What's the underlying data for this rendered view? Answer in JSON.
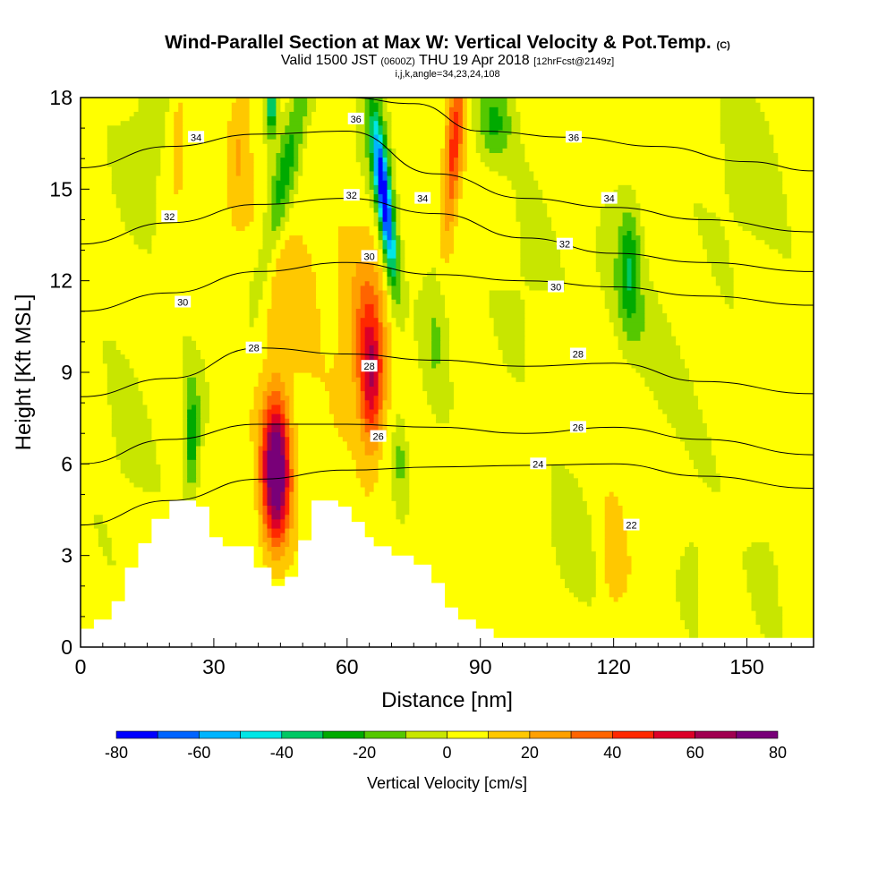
{
  "title": {
    "line1": "Wind-Parallel Section at Max W: Vertical Velocity & Pot.Temp.",
    "line1_mark": "(C)",
    "line2_a": "Valid 1500 JST",
    "line2_b": "(0600Z)",
    "line2_c": "THU 19 Apr 2018",
    "line2_d": "[12hrFcst@2149z]",
    "line3": "i,j,k,angle=34,23,24,108"
  },
  "chart_data": {
    "type": "heatmap",
    "xlabel": "Distance [nm]",
    "ylabel": "Height [Kft MSL]",
    "xlim": [
      0,
      165
    ],
    "ylim": [
      0,
      18
    ],
    "x_ticks": [
      0,
      30,
      60,
      90,
      120,
      150
    ],
    "y_ticks": [
      0,
      3,
      6,
      9,
      12,
      15,
      18
    ],
    "colorbar": {
      "label": "Vertical Velocity [cm/s]",
      "ticks": [
        -80,
        -60,
        -40,
        -20,
        0,
        20,
        40,
        60,
        80
      ],
      "levels": [
        -80,
        -70,
        -60,
        -50,
        -40,
        -30,
        -20,
        -10,
        0,
        10,
        20,
        30,
        40,
        50,
        60,
        70,
        80
      ],
      "colors": [
        "#0000ff",
        "#0064ff",
        "#00b4ff",
        "#00e6e6",
        "#00c864",
        "#00aa00",
        "#55c800",
        "#c8e600",
        "#ffff00",
        "#ffc800",
        "#ffa000",
        "#ff6400",
        "#ff2800",
        "#dc0028",
        "#a00050",
        "#780078"
      ]
    },
    "terrain": [
      [
        0,
        0.6
      ],
      [
        3,
        0.6
      ],
      [
        3,
        0.9
      ],
      [
        7,
        0.9
      ],
      [
        7,
        1.5
      ],
      [
        10,
        1.5
      ],
      [
        10,
        2.6
      ],
      [
        13,
        2.6
      ],
      [
        13,
        3.4
      ],
      [
        16,
        3.4
      ],
      [
        16,
        4.2
      ],
      [
        20,
        4.2
      ],
      [
        20,
        4.8
      ],
      [
        26,
        4.8
      ],
      [
        26,
        4.6
      ],
      [
        29,
        4.6
      ],
      [
        29,
        3.6
      ],
      [
        32,
        3.6
      ],
      [
        32,
        3.3
      ],
      [
        39,
        3.3
      ],
      [
        39,
        2.6
      ],
      [
        43,
        2.6
      ],
      [
        43,
        2.0
      ],
      [
        46,
        2.0
      ],
      [
        46,
        2.3
      ],
      [
        49,
        2.3
      ],
      [
        49,
        3.5
      ],
      [
        52,
        3.5
      ],
      [
        52,
        4.8
      ],
      [
        58,
        4.8
      ],
      [
        58,
        4.6
      ],
      [
        61,
        4.6
      ],
      [
        61,
        4.1
      ],
      [
        64,
        4.1
      ],
      [
        64,
        3.6
      ],
      [
        66,
        3.6
      ],
      [
        66,
        3.3
      ],
      [
        70,
        3.3
      ],
      [
        70,
        3.0
      ],
      [
        75,
        3.0
      ],
      [
        75,
        2.7
      ],
      [
        79,
        2.7
      ],
      [
        79,
        2.1
      ],
      [
        82,
        2.1
      ],
      [
        82,
        1.3
      ],
      [
        85,
        1.3
      ],
      [
        85,
        0.9
      ],
      [
        89,
        0.9
      ],
      [
        89,
        0.6
      ],
      [
        93,
        0.6
      ],
      [
        93,
        0.3
      ],
      [
        165,
        0.3
      ]
    ],
    "velocity_features": [
      {
        "x": 44,
        "y": 5.8,
        "sx": 3.2,
        "sy": 2.4,
        "w": 85,
        "shape": "parallel",
        "lean": 0
      },
      {
        "x": 65.5,
        "y": 8.8,
        "sx": 2.8,
        "sy": 2.3,
        "w": 55,
        "shape": "parallel",
        "lean": 0
      },
      {
        "x": 63,
        "y": 10.8,
        "sx": 4.5,
        "sy": 3.0,
        "w": 18,
        "shape": "parallel",
        "lean": 0.7
      },
      {
        "x": 68.5,
        "y": 14.5,
        "sx": 1.6,
        "sy": 2.5,
        "w": -75,
        "shape": "parallel",
        "lean": -0.8
      },
      {
        "x": 67,
        "y": 16.5,
        "sx": 3.0,
        "sy": 2.5,
        "w": -25,
        "shape": "parallel",
        "lean": -0.8
      },
      {
        "x": 46,
        "y": 15.5,
        "sx": 2.8,
        "sy": 4.0,
        "w": -30,
        "shape": "parallel",
        "lean": 1.5
      },
      {
        "x": 43,
        "y": 17.8,
        "sx": 1.2,
        "sy": 1.0,
        "w": -45,
        "shape": "parallel",
        "lean": 0
      },
      {
        "x": 25,
        "y": 6.5,
        "sx": 1.6,
        "sy": 1.6,
        "w": -28,
        "shape": "parallel",
        "lean": 0
      },
      {
        "x": 25,
        "y": 8.0,
        "sx": 2.5,
        "sy": 1.5,
        "w": -12,
        "shape": "parallel",
        "lean": 0
      },
      {
        "x": 123.5,
        "y": 12.5,
        "sx": 2.5,
        "sy": 2.0,
        "w": -28,
        "shape": "parallel",
        "lean": 0
      },
      {
        "x": 125,
        "y": 10.5,
        "sx": 6,
        "sy": 3.5,
        "w": -12,
        "shape": "parallel",
        "lean": -3
      },
      {
        "x": 84,
        "y": 16.3,
        "sx": 2.0,
        "sy": 3.0,
        "w": 40,
        "shape": "parallel",
        "lean": 0.5
      },
      {
        "x": 93,
        "y": 17.2,
        "sx": 4.0,
        "sy": 1.3,
        "w": -25,
        "shape": "parallel",
        "lean": 0
      },
      {
        "x": 15,
        "y": 16.5,
        "sx": 6,
        "sy": 2.5,
        "w": -12,
        "shape": "parallel",
        "lean": 1
      },
      {
        "x": 22,
        "y": 17.0,
        "sx": 2.5,
        "sy": 2.0,
        "w": 15,
        "shape": "parallel",
        "lean": 0
      },
      {
        "x": 36,
        "y": 16.5,
        "sx": 2.5,
        "sy": 3.0,
        "w": 14,
        "shape": "parallel",
        "lean": 0.5
      },
      {
        "x": 47,
        "y": 12.0,
        "sx": 10,
        "sy": 3.0,
        "w": 12,
        "shape": "parallel",
        "lean": 0
      },
      {
        "x": 80,
        "y": 10.5,
        "sx": 3.0,
        "sy": 2.5,
        "w": -15,
        "shape": "parallel",
        "lean": 0
      },
      {
        "x": 100,
        "y": 12.0,
        "sx": 6,
        "sy": 3.0,
        "w": -7,
        "shape": "parallel",
        "lean": 0
      },
      {
        "x": 150,
        "y": 15.5,
        "sx": 8,
        "sy": 3.0,
        "w": -10,
        "shape": "parallel",
        "lean": 0
      },
      {
        "x": 120,
        "y": 3.0,
        "sx": 3.0,
        "sy": 2.0,
        "w": 13,
        "shape": "parallel",
        "lean": 0
      },
      {
        "x": 110,
        "y": 3.5,
        "sx": 6,
        "sy": 3.0,
        "w": -8,
        "shape": "parallel",
        "lean": 0
      },
      {
        "x": 138,
        "y": 3.0,
        "sx": 3.0,
        "sy": 2.0,
        "w": -7,
        "shape": "parallel",
        "lean": 0
      },
      {
        "x": 155,
        "y": 2.5,
        "sx": 4.0,
        "sy": 2.0,
        "w": -7,
        "shape": "parallel",
        "lean": 0
      },
      {
        "x": 10,
        "y": 6.5,
        "sx": 6,
        "sy": 3.0,
        "w": -7,
        "shape": "parallel",
        "lean": 0
      },
      {
        "x": 100,
        "y": 6.5,
        "sx": 10,
        "sy": 2.0,
        "w": 3,
        "shape": "parallel",
        "lean": 0
      },
      {
        "x": 72,
        "y": 6.2,
        "sx": 1.5,
        "sy": 1.5,
        "w": -15,
        "shape": "parallel",
        "lean": 0
      }
    ],
    "theta_contours": [
      {
        "theta": 24,
        "x": [
          0,
          20,
          40,
          60,
          80,
          100,
          120,
          140,
          165
        ],
        "y": [
          4.0,
          4.8,
          5.5,
          5.8,
          5.9,
          5.95,
          6.0,
          5.6,
          5.2
        ]
      },
      {
        "theta": 26,
        "x": [
          0,
          20,
          40,
          60,
          80,
          100,
          120,
          140,
          165
        ],
        "y": [
          6.0,
          6.8,
          7.3,
          7.3,
          7.2,
          7.0,
          7.2,
          6.8,
          6.3
        ]
      },
      {
        "theta": 28,
        "x": [
          0,
          20,
          40,
          60,
          80,
          100,
          120,
          140,
          165
        ],
        "y": [
          8.2,
          8.8,
          9.8,
          9.6,
          9.4,
          9.2,
          9.3,
          8.7,
          8.3
        ]
      },
      {
        "theta": 30,
        "x": [
          0,
          20,
          40,
          60,
          80,
          100,
          120,
          140,
          165
        ],
        "y": [
          11.0,
          11.6,
          12.3,
          12.6,
          12.2,
          12.0,
          11.8,
          11.5,
          11.2
        ]
      },
      {
        "theta": 32,
        "x": [
          0,
          20,
          40,
          60,
          80,
          100,
          120,
          140,
          165
        ],
        "y": [
          13.2,
          13.9,
          14.5,
          14.7,
          14.2,
          13.4,
          12.9,
          12.6,
          12.3
        ]
      },
      {
        "theta": 34,
        "x": [
          0,
          20,
          40,
          60,
          80,
          100,
          120,
          140,
          165
        ],
        "y": [
          15.7,
          16.4,
          16.8,
          16.9,
          15.5,
          14.7,
          14.4,
          14.0,
          13.6
        ]
      },
      {
        "theta": 36,
        "x": [
          60,
          75,
          90,
          110,
          130,
          150,
          165
        ],
        "y": [
          18.0,
          17.8,
          16.9,
          16.7,
          16.4,
          15.9,
          15.6
        ]
      }
    ],
    "contour_labels": [
      {
        "text": "34",
        "x": 26,
        "y": 16.7
      },
      {
        "text": "32",
        "x": 20,
        "y": 14.1
      },
      {
        "text": "30",
        "x": 23,
        "y": 11.3
      },
      {
        "text": "28",
        "x": 39,
        "y": 9.8
      },
      {
        "text": "36",
        "x": 62,
        "y": 17.3
      },
      {
        "text": "32",
        "x": 61,
        "y": 14.8
      },
      {
        "text": "30",
        "x": 65,
        "y": 12.8
      },
      {
        "text": "34",
        "x": 77,
        "y": 14.7
      },
      {
        "text": "28",
        "x": 65,
        "y": 9.2
      },
      {
        "text": "26",
        "x": 67,
        "y": 6.9
      },
      {
        "text": "36",
        "x": 111,
        "y": 16.7
      },
      {
        "text": "34",
        "x": 119,
        "y": 14.7
      },
      {
        "text": "32",
        "x": 109,
        "y": 13.2
      },
      {
        "text": "30",
        "x": 107,
        "y": 11.8
      },
      {
        "text": "28",
        "x": 112,
        "y": 9.6
      },
      {
        "text": "26",
        "x": 112,
        "y": 7.2
      },
      {
        "text": "24",
        "x": 103,
        "y": 6.0
      },
      {
        "text": "22",
        "x": 124,
        "y": 4.0
      }
    ]
  }
}
